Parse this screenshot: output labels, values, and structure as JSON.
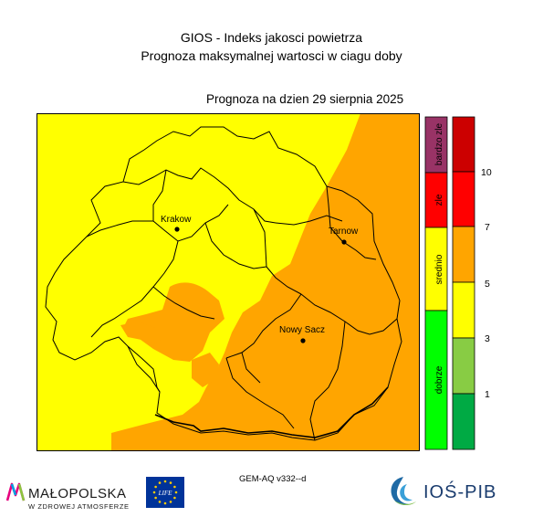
{
  "header": {
    "title_line1": "GIOS - Indeks jakosci powietrza",
    "title_line2": "Prognoza maksymalnej wartosci w ciagu doby",
    "forecast_label": "Prognoza na dzien  29 sierpnia 2025"
  },
  "map": {
    "cities": [
      {
        "name": "Krakow"
      },
      {
        "name": "Tarnow"
      },
      {
        "name": "Nowy Sacz"
      }
    ],
    "colors": {
      "yellow": "#ffff00",
      "orange": "#ffa500",
      "border": "#000000"
    }
  },
  "legend": {
    "categories": [
      {
        "label": "dobrze",
        "color": "#00ff00"
      },
      {
        "label": "srednio",
        "color": "#ffff00"
      },
      {
        "label": "zle",
        "color": "#ff0000"
      },
      {
        "label": "bardzo zle",
        "color": "#993366"
      }
    ],
    "scale": [
      {
        "color": "#00aa44"
      },
      {
        "color": "#88cc44"
      },
      {
        "color": "#ffff00"
      },
      {
        "color": "#ffa500"
      },
      {
        "color": "#ff0000"
      },
      {
        "color": "#cc0000"
      }
    ],
    "tick_labels": [
      "1",
      "3",
      "5",
      "7",
      "10"
    ]
  },
  "footer": {
    "model_label": "GEM-AQ v332--d",
    "logo_malopolska": "MAŁOPOLSKA",
    "logo_malopolska_sub": "W ZDROWEJ ATMOSFERZE",
    "logo_eu_text": "LIFE",
    "logo_ios": "IOŚ-PIB"
  }
}
